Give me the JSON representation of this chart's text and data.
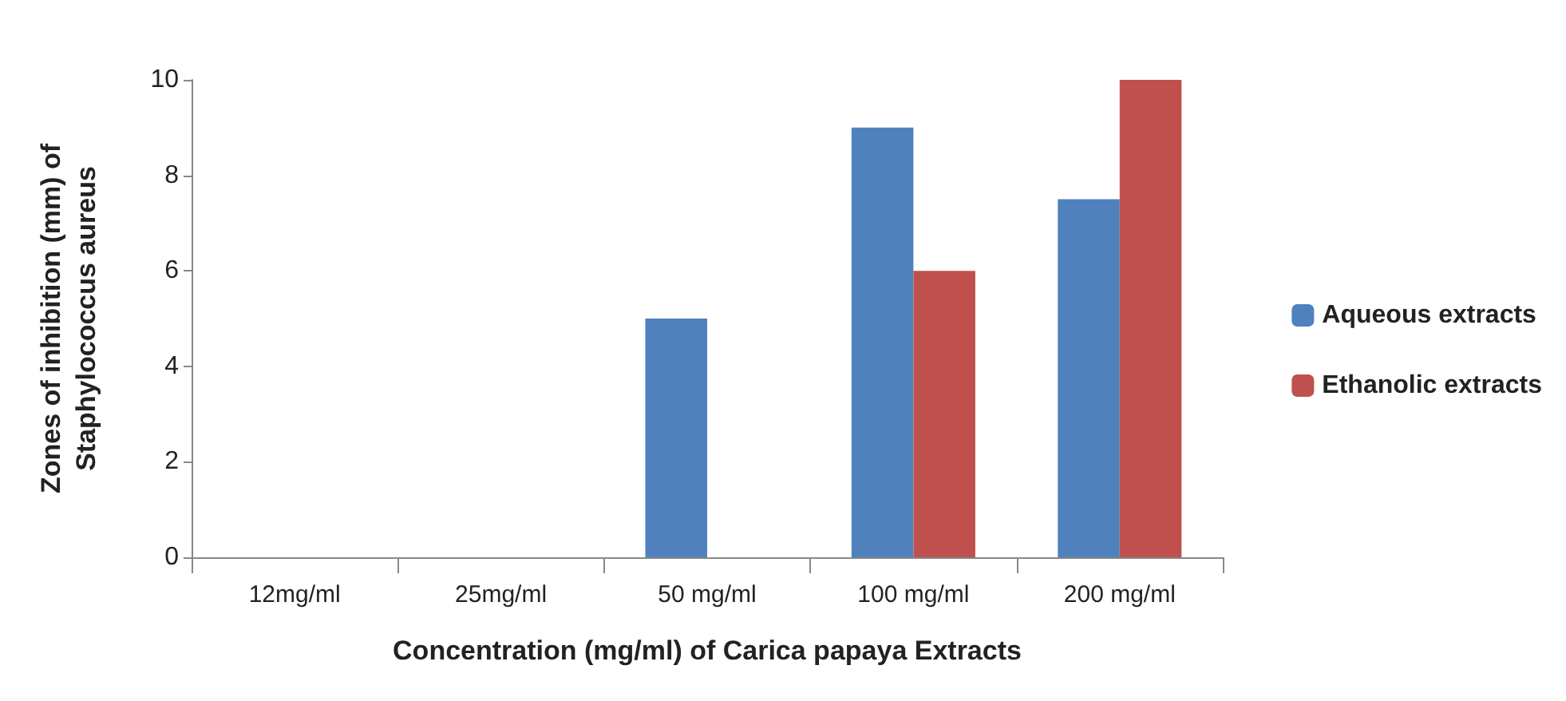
{
  "chart_data": {
    "type": "bar",
    "xlabel": "Concentration (mg/ml) of Carica papaya Extracts",
    "ylabel": "Zones of inhibition (mm) of\nStaphylococcus aureus",
    "categories": [
      "12mg/ml",
      "25mg/ml",
      "50 mg/ml",
      "100 mg/ml",
      "200 mg/ml"
    ],
    "series": [
      {
        "name": "Aqueous extracts",
        "color": "#4f81bd",
        "values": [
          0,
          0,
          5,
          9,
          7.5
        ]
      },
      {
        "name": "Ethanolic extracts",
        "color": "#c0504d",
        "values": [
          0,
          0,
          0,
          6,
          10
        ]
      }
    ],
    "ylim": [
      0,
      10
    ],
    "yticks": [
      0,
      2,
      4,
      6,
      8,
      10
    ],
    "grid": false,
    "legend": "right"
  }
}
